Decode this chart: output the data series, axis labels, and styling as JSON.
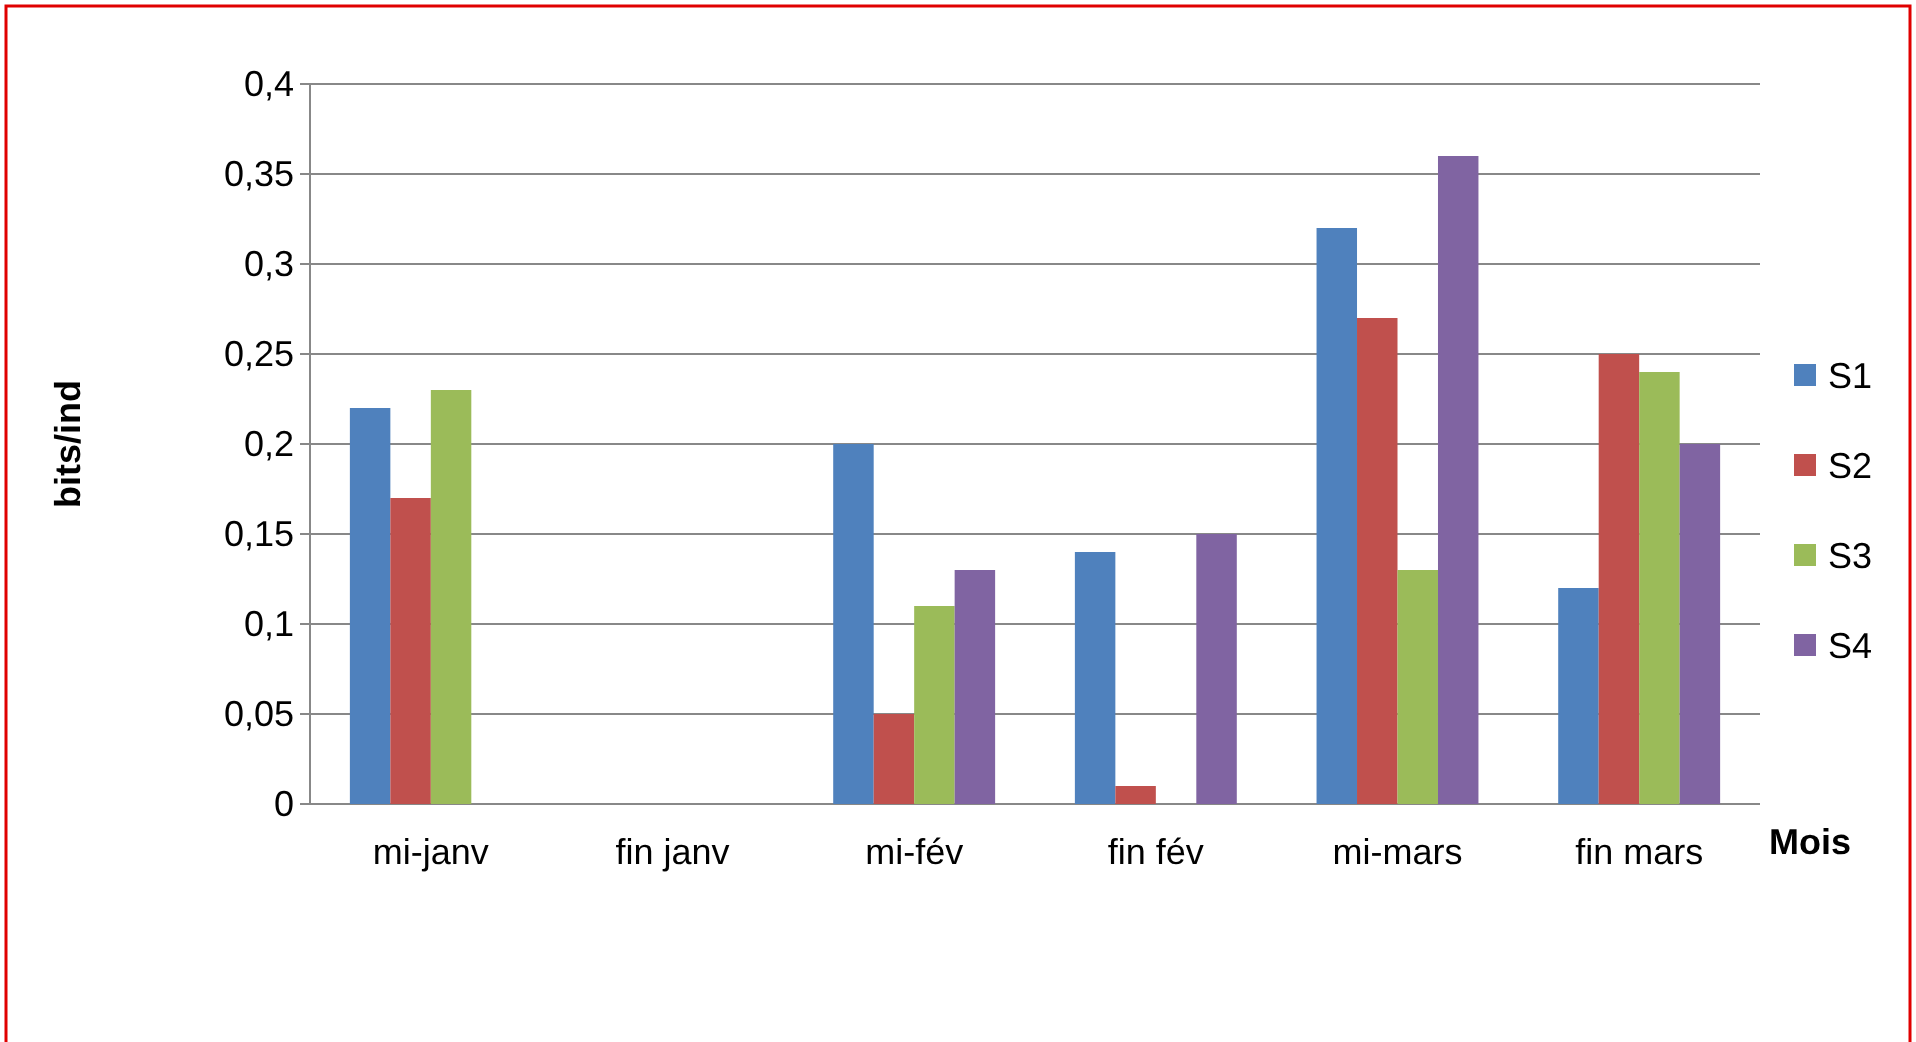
{
  "chart_data": {
    "type": "bar",
    "xlabel": "Mois",
    "ylabel": "bits/ind",
    "categories": [
      "mi-janv",
      "fin janv",
      "mi-fév",
      "fin fév",
      "mi-mars",
      "fin mars"
    ],
    "series": [
      {
        "name": "S1",
        "color": "#4f81bd",
        "values": [
          0.22,
          0,
          0.2,
          0.14,
          0.32,
          0.12
        ]
      },
      {
        "name": "S2",
        "color": "#c0504d",
        "values": [
          0.17,
          0,
          0.05,
          0.01,
          0.27,
          0.25
        ]
      },
      {
        "name": "S3",
        "color": "#9bbb59",
        "values": [
          0.23,
          0,
          0.11,
          0,
          0.13,
          0.24
        ]
      },
      {
        "name": "S4",
        "color": "#8064a2",
        "values": [
          0,
          0,
          0.13,
          0.15,
          0.36,
          0.2
        ]
      }
    ],
    "ylim": [
      0,
      0.4
    ],
    "yticks": [
      0,
      {
        "value": 0.05,
        "label": "0,05"
      },
      {
        "value": 0.1,
        "label": "0,1"
      },
      {
        "value": 0.15,
        "label": "0,15"
      },
      {
        "value": 0.2,
        "label": "0,2"
      },
      {
        "value": 0.25,
        "label": "0,25"
      },
      {
        "value": 0.3,
        "label": "0,3"
      },
      {
        "value": 0.35,
        "label": "0,35"
      },
      {
        "value": 0.4,
        "label": "0,4"
      }
    ],
    "grid": "y",
    "legend": "right"
  }
}
